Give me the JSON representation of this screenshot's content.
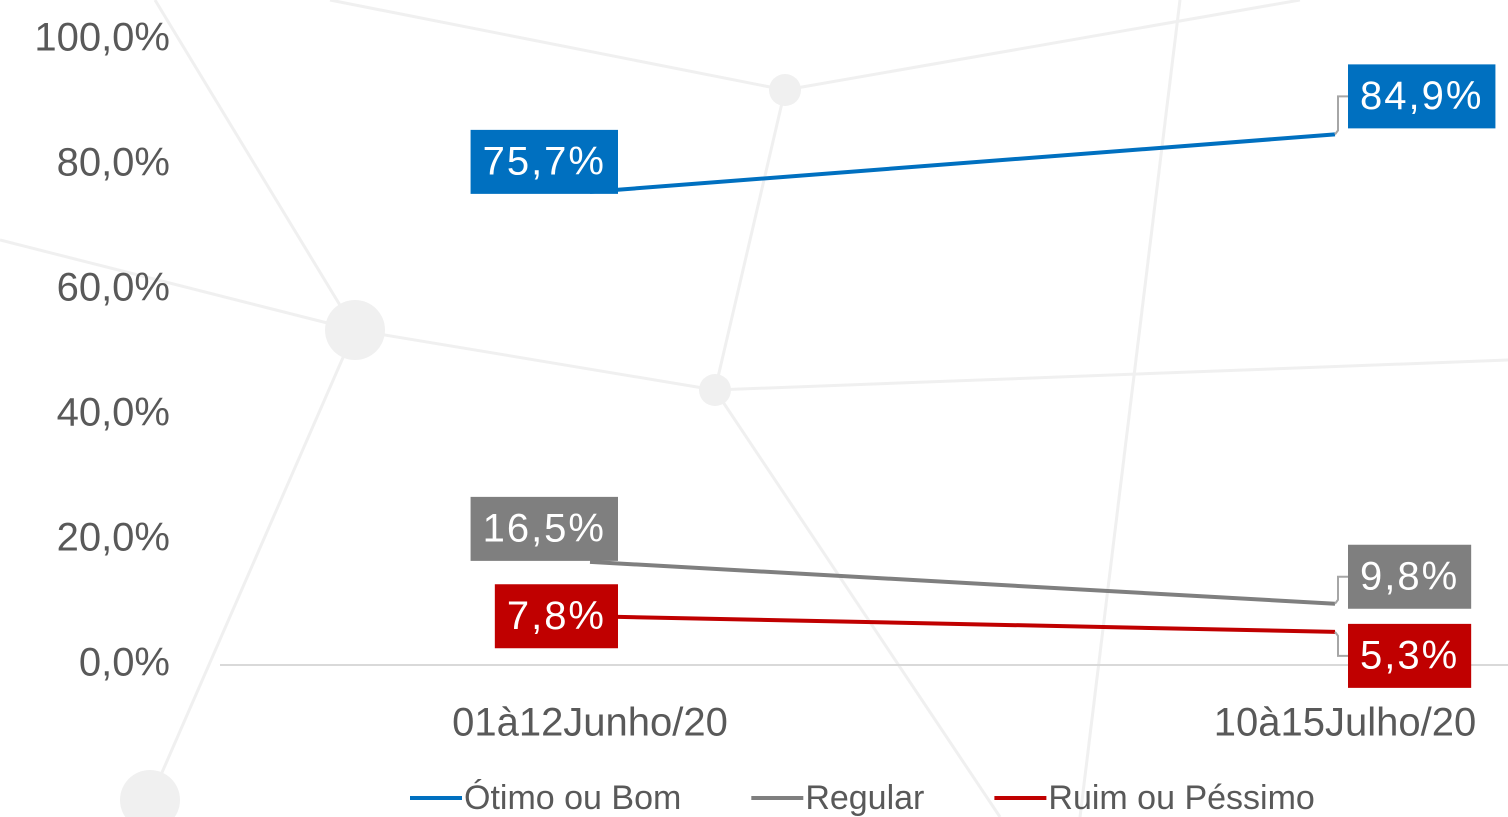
{
  "chart_data": {
    "type": "line",
    "categories": [
      "01à12Junho/20",
      "10à15Julho/20"
    ],
    "series": [
      {
        "name": "Ótimo ou Bom",
        "color": "#0070c0",
        "values": [
          75.7,
          84.9
        ],
        "value_labels": [
          "75,7%",
          "84,9%"
        ]
      },
      {
        "name": "Regular",
        "color": "#7f7f7f",
        "values": [
          16.5,
          9.8
        ],
        "value_labels": [
          "16,5%",
          "9,8%"
        ]
      },
      {
        "name": "Ruim ou Péssimo",
        "color": "#c00000",
        "values": [
          7.8,
          5.3
        ],
        "value_labels": [
          "7,8%",
          "5,3%"
        ]
      }
    ],
    "ylim": [
      0,
      100
    ],
    "yticks": [
      {
        "value": 0,
        "label": "0,0%"
      },
      {
        "value": 20,
        "label": "20,0%"
      },
      {
        "value": 40,
        "label": "40,0%"
      },
      {
        "value": 60,
        "label": "60,0%"
      },
      {
        "value": 80,
        "label": "80,0%"
      },
      {
        "value": 100,
        "label": "100,0%"
      }
    ],
    "legend": "bottom"
  }
}
